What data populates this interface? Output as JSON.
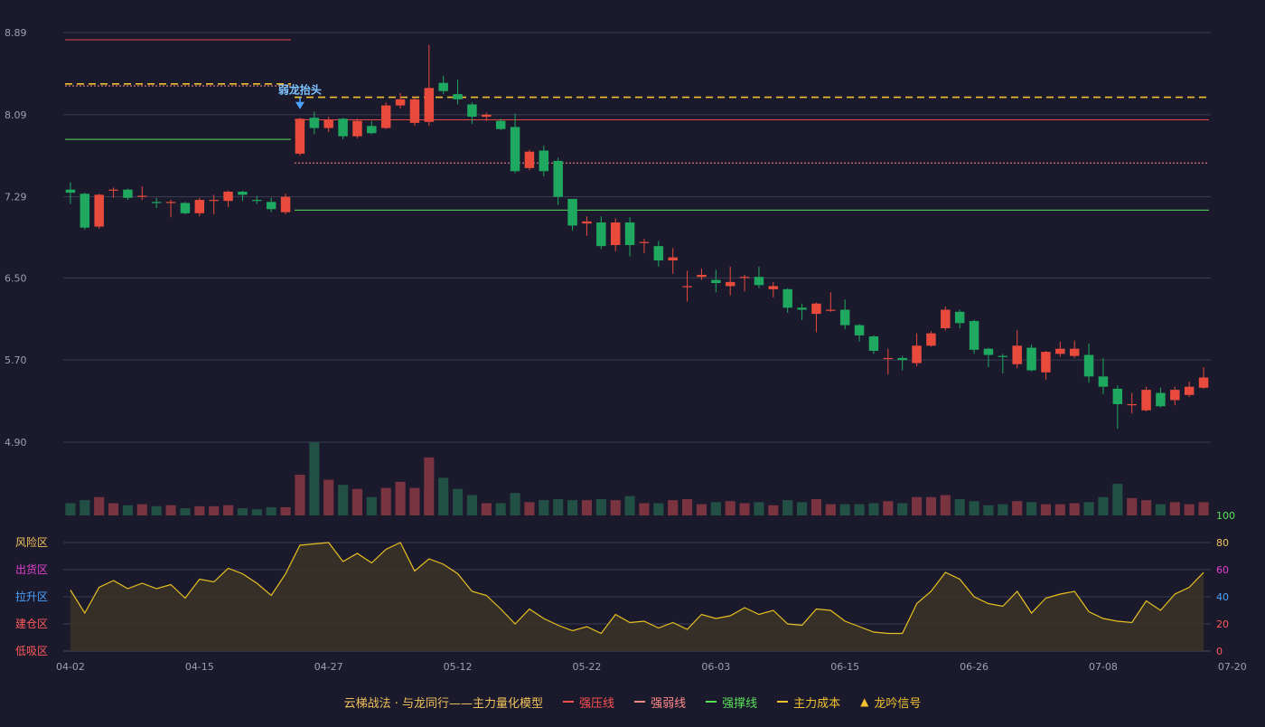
{
  "chart_data": {
    "type": "candlestick",
    "x_tick_labels": [
      "04-02",
      "04-15",
      "04-27",
      "05-12",
      "05-22",
      "06-03",
      "06-15",
      "06-26",
      "07-08",
      "07-20"
    ],
    "price_axis": {
      "ticks": [
        "8.89",
        "8.09",
        "7.29",
        "6.50",
        "5.70",
        "4.90"
      ],
      "ylim": [
        4.9,
        8.89
      ]
    },
    "oscillator_axis": {
      "ticks": [
        "100",
        "80",
        "60",
        "40",
        "20",
        "0"
      ],
      "ylim": [
        0,
        100
      ]
    },
    "zone_labels": [
      {
        "label": "风险区",
        "color": "#f0c15a"
      },
      {
        "label": "出货区",
        "color": "#e040d0"
      },
      {
        "label": "拉升区",
        "color": "#4aa3ff"
      },
      {
        "label": "建仓区",
        "color": "#ff5a5a"
      },
      {
        "label": "低吸区",
        "color": "#ff5a5a"
      }
    ],
    "annotation": {
      "text": "弱龙抬头",
      "at_index": 16,
      "price": 8.17
    },
    "candles": [
      [
        7.36,
        7.33,
        7.43,
        7.22
      ],
      [
        7.32,
        6.99,
        7.33,
        6.97
      ],
      [
        7.0,
        7.31,
        7.32,
        6.98
      ],
      [
        7.36,
        7.36,
        7.38,
        7.28
      ],
      [
        7.36,
        7.28,
        7.37,
        7.26
      ],
      [
        7.3,
        7.3,
        7.39,
        7.26
      ],
      [
        7.24,
        7.23,
        7.28,
        7.18
      ],
      [
        7.24,
        7.24,
        7.26,
        7.09
      ],
      [
        7.23,
        7.13,
        7.24,
        7.12
      ],
      [
        7.13,
        7.26,
        7.28,
        7.1
      ],
      [
        7.26,
        7.26,
        7.31,
        7.12
      ],
      [
        7.25,
        7.34,
        7.35,
        7.19
      ],
      [
        7.34,
        7.31,
        7.35,
        7.25
      ],
      [
        7.26,
        7.25,
        7.3,
        7.22
      ],
      [
        7.24,
        7.17,
        7.28,
        7.14
      ],
      [
        7.14,
        7.29,
        7.32,
        7.12
      ],
      [
        7.71,
        8.05,
        8.06,
        7.69
      ],
      [
        8.06,
        7.96,
        8.12,
        7.9
      ],
      [
        7.96,
        8.04,
        8.07,
        7.92
      ],
      [
        8.05,
        7.88,
        8.06,
        7.85
      ],
      [
        7.88,
        8.03,
        8.05,
        7.86
      ],
      [
        7.98,
        7.91,
        8.03,
        7.9
      ],
      [
        7.96,
        8.18,
        8.21,
        7.95
      ],
      [
        8.18,
        8.24,
        8.3,
        8.15
      ],
      [
        8.01,
        8.24,
        8.26,
        7.98
      ],
      [
        8.02,
        8.35,
        8.77,
        7.98
      ],
      [
        8.4,
        8.32,
        8.47,
        8.29
      ],
      [
        8.29,
        8.24,
        8.43,
        8.19
      ],
      [
        8.19,
        8.07,
        8.21,
        8.0
      ],
      [
        8.07,
        8.09,
        8.11,
        8.03
      ],
      [
        8.03,
        7.95,
        8.05,
        7.94
      ],
      [
        7.97,
        7.54,
        8.1,
        7.52
      ],
      [
        7.57,
        7.73,
        7.75,
        7.55
      ],
      [
        7.74,
        7.54,
        7.79,
        7.49
      ],
      [
        7.64,
        7.29,
        7.67,
        7.21
      ],
      [
        7.27,
        7.01,
        7.27,
        6.96
      ],
      [
        7.03,
        7.05,
        7.1,
        6.91
      ],
      [
        7.04,
        6.81,
        7.1,
        6.78
      ],
      [
        6.82,
        7.04,
        7.08,
        6.76
      ],
      [
        7.04,
        6.82,
        7.09,
        6.71
      ],
      [
        6.84,
        6.85,
        6.88,
        6.74
      ],
      [
        6.81,
        6.67,
        6.86,
        6.61
      ],
      [
        6.67,
        6.7,
        6.79,
        6.54
      ],
      [
        6.42,
        6.42,
        6.57,
        6.27
      ],
      [
        6.51,
        6.53,
        6.59,
        6.48
      ],
      [
        6.48,
        6.45,
        6.58,
        6.36
      ],
      [
        6.42,
        6.46,
        6.61,
        6.33
      ],
      [
        6.51,
        6.51,
        6.53,
        6.37
      ],
      [
        6.51,
        6.43,
        6.61,
        6.4
      ],
      [
        6.39,
        6.42,
        6.46,
        6.31
      ],
      [
        6.39,
        6.21,
        6.4,
        6.16
      ],
      [
        6.21,
        6.19,
        6.25,
        6.09
      ],
      [
        6.15,
        6.25,
        6.26,
        5.97
      ],
      [
        6.19,
        6.19,
        6.36,
        6.17
      ],
      [
        6.19,
        6.04,
        6.29,
        6.0
      ],
      [
        6.04,
        5.94,
        6.05,
        5.88
      ],
      [
        5.93,
        5.79,
        5.94,
        5.76
      ],
      [
        5.72,
        5.72,
        5.81,
        5.56
      ],
      [
        5.72,
        5.7,
        5.74,
        5.6
      ],
      [
        5.67,
        5.84,
        5.96,
        5.64
      ],
      [
        5.84,
        5.96,
        5.98,
        5.83
      ],
      [
        6.01,
        6.19,
        6.22,
        5.99
      ],
      [
        6.17,
        6.06,
        6.19,
        6.01
      ],
      [
        6.08,
        5.8,
        6.09,
        5.76
      ],
      [
        5.81,
        5.75,
        5.82,
        5.63
      ],
      [
        5.74,
        5.73,
        5.76,
        5.57
      ],
      [
        5.66,
        5.84,
        5.99,
        5.62
      ],
      [
        5.82,
        5.6,
        5.85,
        5.59
      ],
      [
        5.58,
        5.78,
        5.79,
        5.51
      ],
      [
        5.76,
        5.81,
        5.88,
        5.73
      ],
      [
        5.74,
        5.81,
        5.89,
        5.72
      ],
      [
        5.75,
        5.54,
        5.86,
        5.48
      ],
      [
        5.54,
        5.44,
        5.72,
        5.37
      ],
      [
        5.42,
        5.27,
        5.45,
        5.03
      ],
      [
        5.27,
        5.27,
        5.38,
        5.18
      ],
      [
        5.21,
        5.41,
        5.44,
        5.2
      ],
      [
        5.38,
        5.25,
        5.43,
        5.24
      ],
      [
        5.31,
        5.41,
        5.44,
        5.26
      ],
      [
        5.36,
        5.44,
        5.49,
        5.34
      ],
      [
        5.43,
        5.53,
        5.63,
        5.42
      ]
    ],
    "volume": [
      12,
      15,
      18,
      12,
      10,
      11,
      9,
      10,
      7,
      9,
      9,
      10,
      7,
      6,
      8,
      8,
      40,
      72,
      35,
      30,
      26,
      18,
      27,
      33,
      27,
      57,
      37,
      26,
      20,
      12,
      12,
      22,
      13,
      15,
      16,
      15,
      15,
      16,
      15,
      19,
      12,
      12,
      15,
      16,
      11,
      13,
      14,
      12,
      13,
      10,
      15,
      13,
      16,
      11,
      11,
      11,
      12,
      14,
      12,
      18,
      18,
      20,
      16,
      14,
      10,
      11,
      14,
      13,
      11,
      11,
      12,
      13,
      18,
      31,
      17,
      15,
      11,
      13,
      11,
      13
    ],
    "volume_ylim": [
      0,
      72
    ],
    "oscillator": [
      45,
      28,
      47,
      52,
      46,
      50,
      46,
      49,
      39,
      53,
      51,
      61,
      57,
      50,
      41,
      57,
      78,
      79,
      80,
      66,
      72,
      65,
      75,
      80,
      59,
      68,
      64,
      57,
      44,
      41,
      31,
      20,
      31,
      24,
      19,
      15,
      18,
      13,
      27,
      21,
      22,
      17,
      21,
      16,
      27,
      24,
      26,
      32,
      27,
      30,
      20,
      19,
      31,
      30,
      22,
      18,
      14,
      13,
      13,
      35,
      44,
      58,
      53,
      40,
      35,
      33,
      44,
      28,
      39,
      42,
      44,
      29,
      24,
      22,
      21,
      37,
      30,
      42,
      47,
      58
    ],
    "lines": [
      {
        "name": "强压线",
        "style": "solid",
        "color": "#e04848",
        "segments": [
          {
            "from": 0,
            "to": 15,
            "value": 8.82
          },
          {
            "from": 16,
            "to": 79,
            "value": 8.04
          }
        ]
      },
      {
        "name": "强弱线",
        "style": "dotted",
        "color": "#ff8a8a",
        "segments": [
          {
            "from": 0,
            "to": 15,
            "value": 8.37
          },
          {
            "from": 16,
            "to": 79,
            "value": 7.62
          }
        ]
      },
      {
        "name": "强撑线",
        "style": "solid",
        "color": "#58e058",
        "segments": [
          {
            "from": 0,
            "to": 15,
            "value": 7.85
          },
          {
            "from": 16,
            "to": 79,
            "value": 7.16
          }
        ]
      },
      {
        "name": "主力成本",
        "style": "dashed",
        "color": "#f0c030",
        "segments": [
          {
            "from": 0,
            "to": 15,
            "value": 8.39
          },
          {
            "from": 16,
            "to": 79,
            "value": 8.26
          }
        ]
      }
    ],
    "colors": {
      "up": "#e84a3c",
      "down": "#1fa85f",
      "vol_up": "#7a3440",
      "vol_down": "#235045",
      "osc_line": "#e8c020",
      "osc_fill": "#3a3428",
      "grid": "#3a3b52",
      "axis_text": "#9aa0b0"
    }
  },
  "legend": {
    "title": "云梯战法 · 与龙同行——主力量化模型",
    "items": [
      {
        "label": "强压线",
        "color": "#ff5050",
        "kind": "solid"
      },
      {
        "label": "强弱线",
        "color": "#ff8a8a",
        "kind": "dashed"
      },
      {
        "label": "强撑线",
        "color": "#58e058",
        "kind": "solid"
      },
      {
        "label": "主力成本",
        "color": "#f0c030",
        "kind": "dashed"
      },
      {
        "label": "龙吟信号",
        "color": "#f0c030",
        "kind": "triangle"
      }
    ]
  }
}
